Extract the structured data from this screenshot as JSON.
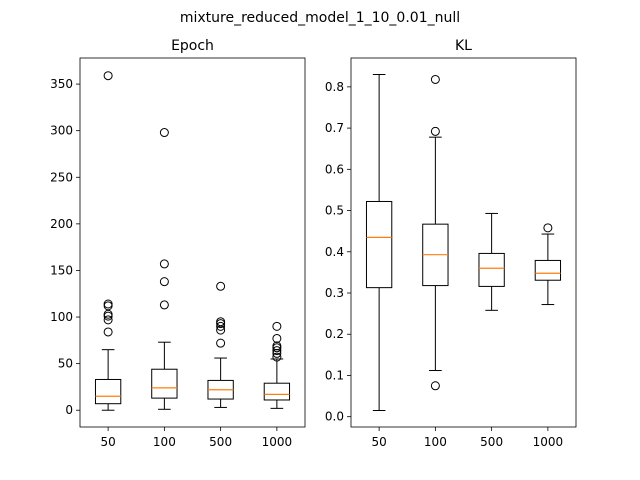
{
  "figure": {
    "title": "mixture_reduced_model_1_10_0.01_null"
  },
  "colors": {
    "median": "#ff7f0e",
    "box": "#000000",
    "axes": "#000000"
  },
  "chart_data": [
    {
      "type": "box",
      "title": "Epoch",
      "categories": [
        "50",
        "100",
        "500",
        "1000"
      ],
      "ylim": [
        -18,
        378
      ],
      "yticks": [
        0,
        50,
        100,
        150,
        200,
        250,
        300,
        350
      ],
      "grid": false,
      "boxes": [
        {
          "whislo": 0,
          "q1": 7,
          "med": 15,
          "q3": 33,
          "whishi": 65,
          "fliers": [
            84,
            97,
            101,
            103,
            112,
            114,
            359
          ]
        },
        {
          "whislo": 1,
          "q1": 13,
          "med": 24,
          "q3": 44,
          "whishi": 73,
          "fliers": [
            113,
            138,
            157,
            298
          ]
        },
        {
          "whislo": 3,
          "q1": 12,
          "med": 22,
          "q3": 32,
          "whishi": 56,
          "fliers": [
            72,
            86,
            90,
            93,
            95,
            133
          ]
        },
        {
          "whislo": 2,
          "q1": 11,
          "med": 17,
          "q3": 29,
          "whishi": 55,
          "fliers": [
            57,
            61,
            64,
            67,
            69,
            77,
            90
          ]
        }
      ]
    },
    {
      "type": "box",
      "title": "KL",
      "categories": [
        "50",
        "100",
        "500",
        "1000"
      ],
      "ylim": [
        -0.025,
        0.87
      ],
      "yticks": [
        0.0,
        0.1,
        0.2,
        0.3,
        0.4,
        0.5,
        0.6,
        0.7,
        0.8
      ],
      "grid": false,
      "boxes": [
        {
          "whislo": 0.015,
          "q1": 0.313,
          "med": 0.435,
          "q3": 0.522,
          "whishi": 0.83,
          "fliers": []
        },
        {
          "whislo": 0.112,
          "q1": 0.318,
          "med": 0.393,
          "q3": 0.467,
          "whishi": 0.678,
          "fliers": [
            0.075,
            0.692,
            0.818
          ]
        },
        {
          "whislo": 0.258,
          "q1": 0.316,
          "med": 0.36,
          "q3": 0.396,
          "whishi": 0.493,
          "fliers": []
        },
        {
          "whislo": 0.272,
          "q1": 0.331,
          "med": 0.348,
          "q3": 0.379,
          "whishi": 0.443,
          "fliers": [
            0.458
          ]
        }
      ]
    }
  ]
}
